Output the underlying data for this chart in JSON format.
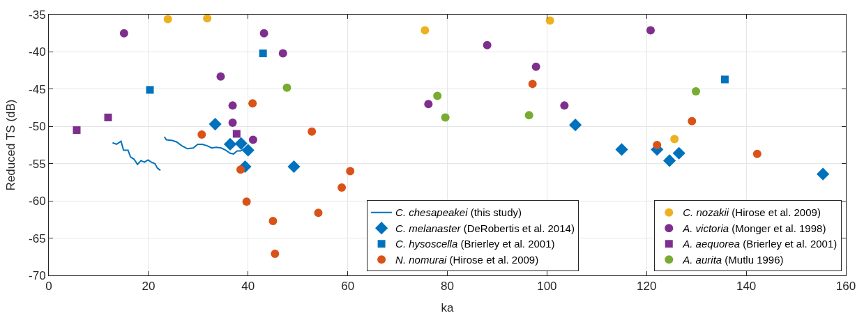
{
  "chart_data": {
    "type": "scatter",
    "xlabel": "ka",
    "ylabel": "Reduced TS (dB)",
    "xlim": [
      0,
      160
    ],
    "ylim": [
      -70,
      -35
    ],
    "xticks": [
      0,
      20,
      40,
      60,
      80,
      100,
      120,
      140,
      160
    ],
    "yticks": [
      -70,
      -65,
      -60,
      -55,
      -50,
      -45,
      -40,
      -35
    ],
    "grid": true,
    "legend": "bottom right",
    "series": [
      {
        "name": "C. chesapeakei (this study)",
        "type": "line",
        "marker": "none",
        "color": "#0072bd",
        "x": [
          12.8,
          13.6,
          14.5,
          15.0,
          15.9,
          16.4,
          17.1,
          17.8,
          18.5,
          19.2,
          19.9,
          20.6,
          21.3,
          21.8,
          22.4,
          null,
          23.2,
          23.6,
          24.8,
          25.7,
          26.7,
          27.8,
          29.0,
          29.9,
          30.8,
          31.8,
          32.7,
          33.6,
          34.6,
          35.5,
          36.4,
          37.1,
          37.8,
          38.5,
          39.2
        ],
        "values": [
          -52.2,
          -52.4,
          -52.0,
          -53.2,
          -53.2,
          -54.1,
          -54.4,
          -55.1,
          -54.6,
          -54.8,
          -54.5,
          -54.8,
          -55.0,
          -55.6,
          -55.9,
          null,
          -51.4,
          -51.8,
          -51.9,
          -52.1,
          -52.6,
          -53.0,
          -52.9,
          -52.4,
          -52.4,
          -52.6,
          -52.9,
          -52.8,
          -52.9,
          -53.2,
          -53.6,
          -53.7,
          -53.3,
          -53.3,
          -53.0
        ]
      },
      {
        "name": "C. melanaster (DeRobertis et al. 2014)",
        "marker": "diamond",
        "color": "#0072bd",
        "x": [
          33.4,
          36.4,
          38.6,
          40.0,
          39.4,
          49.2,
          105.7,
          115.0,
          122.1,
          124.6,
          126.5,
          155.4
        ],
        "values": [
          -49.7,
          -52.4,
          -52.3,
          -53.2,
          -55.4,
          -55.4,
          -49.8,
          -53.1,
          -53.1,
          -54.6,
          -53.6,
          -56.4
        ]
      },
      {
        "name": "C. hysoscella (Brierley et al. 2001)",
        "marker": "square",
        "color": "#0072bd",
        "x": [
          20.3,
          43.0,
          135.7
        ],
        "values": [
          -45.1,
          -40.2,
          -43.7
        ]
      },
      {
        "name": "N. nomurai (Hirose et al. 2009)",
        "marker": "circle",
        "color": "#d95319",
        "x": [
          30.7,
          38.5,
          39.7,
          40.9,
          45.0,
          45.4,
          52.8,
          54.1,
          58.8,
          60.5,
          97.1,
          122.1,
          129.1,
          142.2
        ],
        "values": [
          -51.1,
          -55.8,
          -60.1,
          -46.9,
          -62.7,
          -67.1,
          -50.7,
          -61.6,
          -58.2,
          -56.0,
          -44.3,
          -52.5,
          -49.3,
          -53.7
        ]
      },
      {
        "name": "C. nozakii (Hirose et al. 2009)",
        "marker": "circle",
        "color": "#edb120",
        "x": [
          23.9,
          31.8,
          75.5,
          100.6,
          125.6
        ],
        "values": [
          -35.6,
          -35.5,
          -37.1,
          -35.8,
          -51.7
        ]
      },
      {
        "name": "A. victoria (Monger et al. 1998)",
        "marker": "circle",
        "color": "#7e2f8e",
        "x": [
          15.1,
          34.5,
          36.9,
          36.9,
          41.0,
          43.2,
          47.0,
          76.2,
          88.0,
          97.8,
          103.5,
          120.8
        ],
        "values": [
          -37.5,
          -43.3,
          -47.2,
          -49.5,
          -51.8,
          -37.5,
          -40.2,
          -47.0,
          -39.1,
          -42.0,
          -47.2,
          -37.1
        ]
      },
      {
        "name": "A. aequorea (Brierley et al. 2001)",
        "marker": "square",
        "color": "#7e2f8e",
        "x": [
          5.6,
          11.9,
          37.7
        ],
        "values": [
          -50.5,
          -48.8,
          -51.0
        ]
      },
      {
        "name": "A. aurita (Mutlu 1996)",
        "marker": "circle",
        "color": "#77ac30",
        "x": [
          47.8,
          78.0,
          79.6,
          96.4,
          129.9
        ],
        "values": [
          -44.8,
          -45.9,
          -48.8,
          -48.5,
          -45.3
        ]
      }
    ]
  }
}
